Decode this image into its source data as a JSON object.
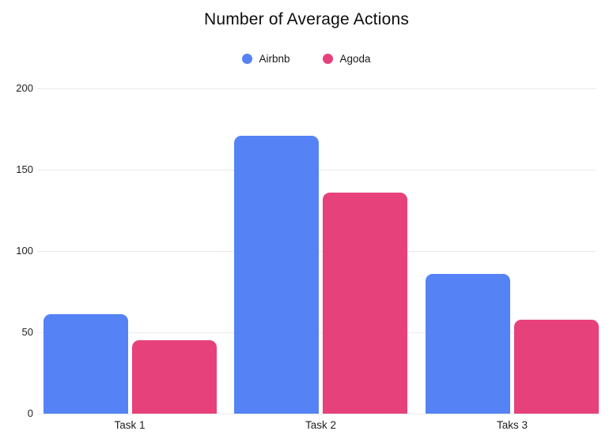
{
  "chart_data": {
    "type": "bar",
    "title": "Number of Average Actions",
    "categories": [
      "Task 1",
      "Task 2",
      "Taks 3"
    ],
    "series": [
      {
        "name": "Airbnb",
        "color": "#5583f5",
        "values": [
          61,
          171,
          86
        ]
      },
      {
        "name": "Agoda",
        "color": "#e7417b",
        "values": [
          45,
          136,
          58
        ]
      }
    ],
    "xlabel": "",
    "ylabel": "",
    "ylim": [
      0,
      200
    ],
    "yticks": [
      0,
      50,
      100,
      150,
      200
    ],
    "legend_position": "top-center",
    "grid": "horizontal",
    "gridline_color": "#eaeaea",
    "background_color": "#ffffff",
    "title_color": "#0d0d0d",
    "axis_label_color": "#1f1f1f"
  }
}
